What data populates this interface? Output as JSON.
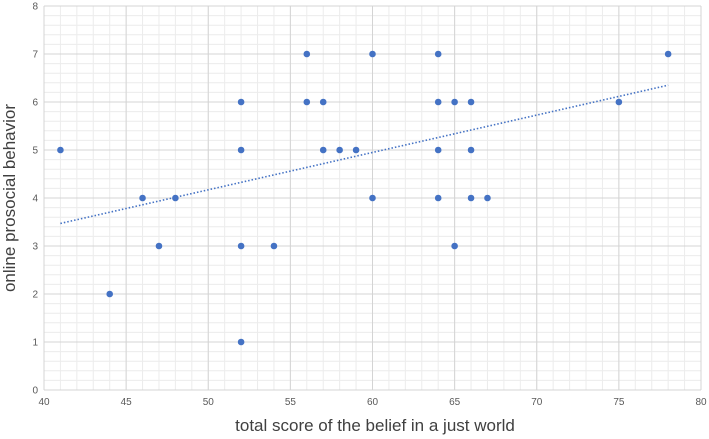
{
  "chart_data": {
    "type": "scatter",
    "xlabel": "total score of the belief in a just world",
    "ylabel": "online prosocial behavior",
    "xlim": [
      40,
      80
    ],
    "ylim": [
      0,
      8
    ],
    "x_ticks": [
      40,
      45,
      50,
      55,
      60,
      65,
      70,
      75,
      80
    ],
    "y_ticks": [
      0,
      1,
      2,
      3,
      4,
      5,
      6,
      7,
      8
    ],
    "grid": true,
    "minor_grid": true,
    "legend": "none",
    "marker_color": "#4472c4",
    "trendline": {
      "type": "linear",
      "style": "dotted",
      "color": "#4472c4",
      "x_range": [
        41,
        78
      ],
      "y_range": [
        3.47,
        6.35
      ]
    },
    "points": [
      {
        "x": 41,
        "y": 5
      },
      {
        "x": 44,
        "y": 2
      },
      {
        "x": 46,
        "y": 4
      },
      {
        "x": 47,
        "y": 3
      },
      {
        "x": 48,
        "y": 4
      },
      {
        "x": 52,
        "y": 6
      },
      {
        "x": 52,
        "y": 5
      },
      {
        "x": 52,
        "y": 3
      },
      {
        "x": 52,
        "y": 1
      },
      {
        "x": 54,
        "y": 3
      },
      {
        "x": 56,
        "y": 7
      },
      {
        "x": 56,
        "y": 6
      },
      {
        "x": 57,
        "y": 6
      },
      {
        "x": 57,
        "y": 5
      },
      {
        "x": 58,
        "y": 5
      },
      {
        "x": 59,
        "y": 5
      },
      {
        "x": 60,
        "y": 7
      },
      {
        "x": 60,
        "y": 4
      },
      {
        "x": 64,
        "y": 7
      },
      {
        "x": 64,
        "y": 6
      },
      {
        "x": 64,
        "y": 5
      },
      {
        "x": 64,
        "y": 4
      },
      {
        "x": 65,
        "y": 6
      },
      {
        "x": 65,
        "y": 3
      },
      {
        "x": 66,
        "y": 6
      },
      {
        "x": 66,
        "y": 5
      },
      {
        "x": 66,
        "y": 4
      },
      {
        "x": 67,
        "y": 4
      },
      {
        "x": 75,
        "y": 6
      },
      {
        "x": 78,
        "y": 7
      }
    ]
  }
}
